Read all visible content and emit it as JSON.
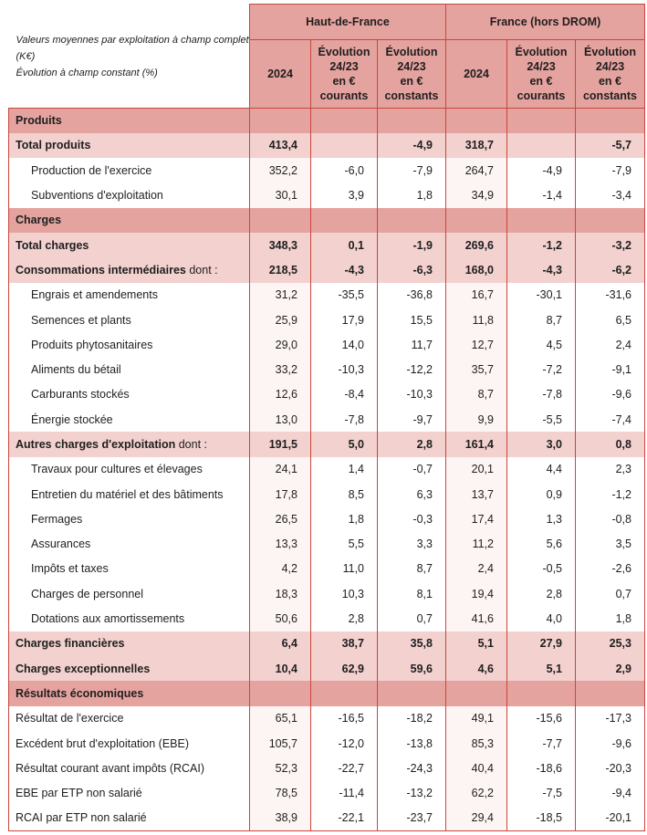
{
  "header": {
    "note_lines": [
      "Valeurs moyennes par exploitation à champ complet (K€)",
      "Évolution à champ constant (%)"
    ],
    "groups": [
      "Haut-de-France",
      "France (hors DROM)"
    ],
    "columns": [
      [
        "2024"
      ],
      [
        "Évolution",
        "24/23",
        "en €",
        "courants"
      ],
      [
        "Évolution",
        "24/23",
        "en €",
        "constants"
      ],
      [
        "2024"
      ],
      [
        "Évolution",
        "24/23",
        "en €",
        "courants"
      ],
      [
        "Évolution",
        "24/23",
        "en €",
        "constants"
      ]
    ]
  },
  "colors": {
    "header_bg": "#e5a39f",
    "subtotal_bg": "#f2d1cf",
    "border": "#c9463c"
  },
  "rows": [
    {
      "type": "section",
      "label": "Produits",
      "values": [
        "",
        "",
        "",
        "",
        "",
        ""
      ]
    },
    {
      "type": "total",
      "label": "Total produits",
      "values": [
        "413,4",
        "",
        "-4,9",
        "318,7",
        "",
        "-5,7"
      ]
    },
    {
      "type": "item",
      "label": "Production de l'exercice",
      "values": [
        "352,2",
        "-6,0",
        "-7,9",
        "264,7",
        "-4,9",
        "-7,9"
      ]
    },
    {
      "type": "item",
      "label": "Subventions d'exploitation",
      "values": [
        "30,1",
        "3,9",
        "1,8",
        "34,9",
        "-1,4",
        "-3,4"
      ]
    },
    {
      "type": "section",
      "label": "Charges",
      "values": [
        "",
        "",
        "",
        "",
        "",
        ""
      ]
    },
    {
      "type": "total",
      "label": "Total charges",
      "values": [
        "348,3",
        "0,1",
        "-1,9",
        "269,6",
        "-1,2",
        "-3,2"
      ]
    },
    {
      "type": "total",
      "label": "Consommations intermédiaires",
      "suffix": " dont :",
      "values": [
        "218,5",
        "-4,3",
        "-6,3",
        "168,0",
        "-4,3",
        "-6,2"
      ]
    },
    {
      "type": "item",
      "label": "Engrais et amendements",
      "values": [
        "31,2",
        "-35,5",
        "-36,8",
        "16,7",
        "-30,1",
        "-31,6"
      ]
    },
    {
      "type": "item",
      "label": "Semences et plants",
      "values": [
        "25,9",
        "17,9",
        "15,5",
        "11,8",
        "8,7",
        "6,5"
      ]
    },
    {
      "type": "item",
      "label": "Produits phytosanitaires",
      "values": [
        "29,0",
        "14,0",
        "11,7",
        "12,7",
        "4,5",
        "2,4"
      ]
    },
    {
      "type": "item",
      "label": "Aliments du bétail",
      "values": [
        "33,2",
        "-10,3",
        "-12,2",
        "35,7",
        "-7,2",
        "-9,1"
      ]
    },
    {
      "type": "item",
      "label": "Carburants stockés",
      "values": [
        "12,6",
        "-8,4",
        "-10,3",
        "8,7",
        "-7,8",
        "-9,6"
      ]
    },
    {
      "type": "item",
      "label": "Énergie stockée",
      "values": [
        "13,0",
        "-7,8",
        "-9,7",
        "9,9",
        "-5,5",
        "-7,4"
      ]
    },
    {
      "type": "total",
      "label": "Autres charges d'exploitation",
      "suffix": " dont :",
      "values": [
        "191,5",
        "5,0",
        "2,8",
        "161,4",
        "3,0",
        "0,8"
      ]
    },
    {
      "type": "item",
      "label": "Travaux pour cultures et élevages",
      "values": [
        "24,1",
        "1,4",
        "-0,7",
        "20,1",
        "4,4",
        "2,3"
      ]
    },
    {
      "type": "item",
      "label": "Entretien du matériel et des bâtiments",
      "values": [
        "17,8",
        "8,5",
        "6,3",
        "13,7",
        "0,9",
        "-1,2"
      ]
    },
    {
      "type": "item",
      "label": "Fermages",
      "values": [
        "26,5",
        "1,8",
        "-0,3",
        "17,4",
        "1,3",
        "-0,8"
      ]
    },
    {
      "type": "item",
      "label": "Assurances",
      "values": [
        "13,3",
        "5,5",
        "3,3",
        "11,2",
        "5,6",
        "3,5"
      ]
    },
    {
      "type": "item",
      "label": "Impôts et taxes",
      "values": [
        "4,2",
        "11,0",
        "8,7",
        "2,4",
        "-0,5",
        "-2,6"
      ]
    },
    {
      "type": "item",
      "label": "Charges de personnel",
      "values": [
        "18,3",
        "10,3",
        "8,1",
        "19,4",
        "2,8",
        "0,7"
      ]
    },
    {
      "type": "item",
      "label": "Dotations aux amortissements",
      "values": [
        "50,6",
        "2,8",
        "0,7",
        "41,6",
        "4,0",
        "1,8"
      ]
    },
    {
      "type": "total",
      "label": "Charges financières",
      "values": [
        "6,4",
        "38,7",
        "35,8",
        "5,1",
        "27,9",
        "25,3"
      ]
    },
    {
      "type": "total",
      "label": "Charges exceptionnelles",
      "values": [
        "10,4",
        "62,9",
        "59,6",
        "4,6",
        "5,1",
        "2,9"
      ]
    },
    {
      "type": "section",
      "label": "Résultats économiques",
      "values": [
        "",
        "",
        "",
        "",
        "",
        ""
      ]
    },
    {
      "type": "result",
      "label": "Résultat de l'exercice",
      "values": [
        "65,1",
        "-16,5",
        "-18,2",
        "49,1",
        "-15,6",
        "-17,3"
      ]
    },
    {
      "type": "result",
      "label": "Excédent brut d'exploitation (EBE)",
      "values": [
        "105,7",
        "-12,0",
        "-13,8",
        "85,3",
        "-7,7",
        "-9,6"
      ]
    },
    {
      "type": "result",
      "label": "Résultat courant avant impôts (RCAI)",
      "values": [
        "52,3",
        "-22,7",
        "-24,3",
        "40,4",
        "-18,6",
        "-20,3"
      ]
    },
    {
      "type": "result",
      "label": "EBE par ETP non salarié",
      "values": [
        "78,5",
        "-11,4",
        "-13,2",
        "62,2",
        "-7,5",
        "-9,4"
      ]
    },
    {
      "type": "result",
      "label": "RCAI par ETP non salarié",
      "values": [
        "38,9",
        "-22,1",
        "-23,7",
        "29,4",
        "-18,5",
        "-20,1"
      ]
    }
  ]
}
